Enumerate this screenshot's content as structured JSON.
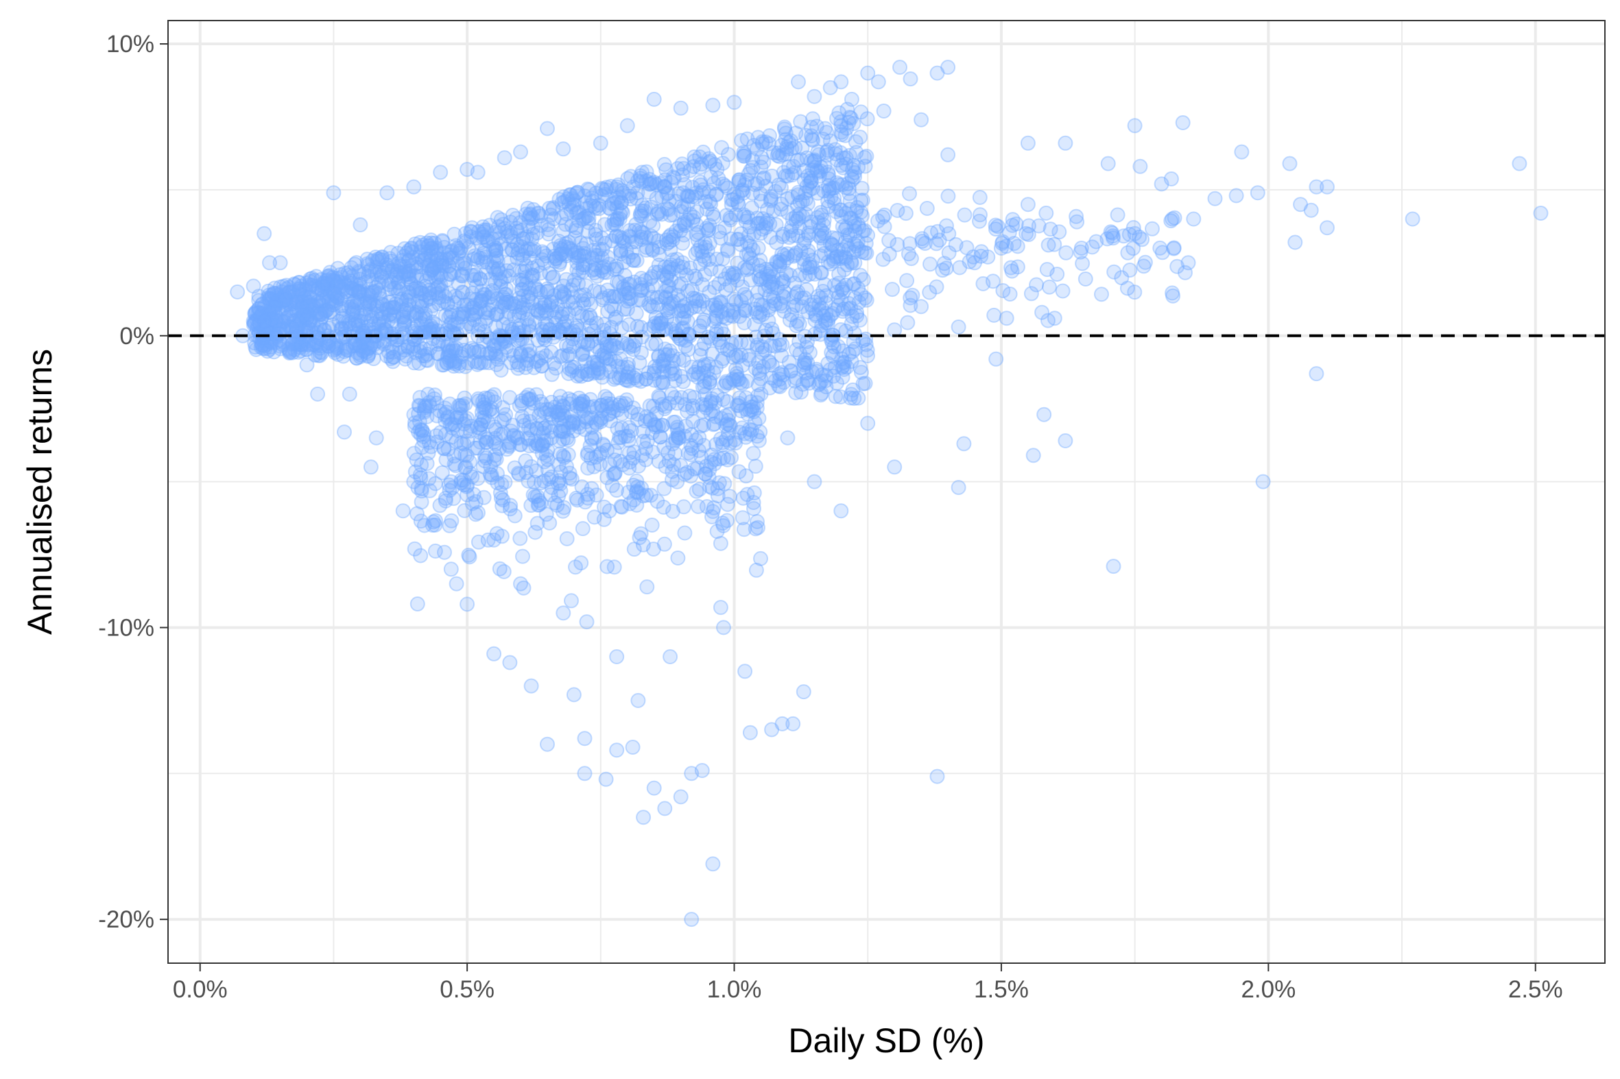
{
  "chart_data": {
    "type": "scatter",
    "title": "",
    "xlabel": "Daily SD (%)",
    "ylabel": "Annualised returns",
    "xlim": [
      -0.06,
      2.63
    ],
    "ylim": [
      -21.5,
      10.8
    ],
    "x_ticks": [
      {
        "value": 0.0,
        "label": "0.0%"
      },
      {
        "value": 0.5,
        "label": "0.5%"
      },
      {
        "value": 1.0,
        "label": "1.0%"
      },
      {
        "value": 1.5,
        "label": "1.5%"
      },
      {
        "value": 2.0,
        "label": "2.0%"
      },
      {
        "value": 2.5,
        "label": "2.5%"
      }
    ],
    "y_ticks": [
      {
        "value": 10,
        "label": "10%"
      },
      {
        "value": 0,
        "label": "0%"
      },
      {
        "value": -10,
        "label": "-10%"
      },
      {
        "value": -20,
        "label": "-20%"
      }
    ],
    "minor_grid_x": [
      0.25,
      0.75,
      1.25,
      1.75,
      2.25
    ],
    "minor_grid_y": [
      5,
      -5,
      -15
    ],
    "grid": true,
    "reference_line": {
      "axis": "y",
      "value": 0,
      "style": "dashed",
      "color": "#000000"
    },
    "point_color": "#6ea8fe",
    "point_alpha": 0.25,
    "series": [
      {
        "values": [
          [
            0.07,
            1.5
          ],
          [
            0.08,
            0.0
          ],
          [
            0.1,
            1.7
          ],
          [
            0.12,
            3.5
          ],
          [
            0.15,
            2.5
          ],
          [
            0.18,
            0.3
          ],
          [
            0.2,
            1.0
          ],
          [
            0.22,
            -2.0
          ],
          [
            0.25,
            4.9
          ],
          [
            0.27,
            -3.3
          ],
          [
            0.3,
            3.8
          ],
          [
            0.32,
            -4.5
          ],
          [
            0.35,
            4.9
          ],
          [
            0.38,
            -6.0
          ],
          [
            0.4,
            5.1
          ],
          [
            0.42,
            -6.5
          ],
          [
            0.45,
            5.6
          ],
          [
            0.47,
            -8.0
          ],
          [
            0.5,
            5.7
          ],
          [
            0.5,
            -9.2
          ],
          [
            0.52,
            5.6
          ],
          [
            0.55,
            -10.9
          ],
          [
            0.57,
            6.1
          ],
          [
            0.58,
            -11.2
          ],
          [
            0.6,
            6.3
          ],
          [
            0.62,
            -12.0
          ],
          [
            0.65,
            7.1
          ],
          [
            0.65,
            -14.0
          ],
          [
            0.68,
            6.4
          ],
          [
            0.7,
            -12.3
          ],
          [
            0.72,
            -15.0
          ],
          [
            0.72,
            -13.8
          ],
          [
            0.75,
            6.6
          ],
          [
            0.76,
            -15.2
          ],
          [
            0.78,
            -14.2
          ],
          [
            0.8,
            7.2
          ],
          [
            0.81,
            -14.1
          ],
          [
            0.83,
            -16.5
          ],
          [
            0.85,
            -15.5
          ],
          [
            0.85,
            8.1
          ],
          [
            0.87,
            -16.2
          ],
          [
            0.9,
            -15.8
          ],
          [
            0.9,
            7.8
          ],
          [
            0.92,
            -20.0
          ],
          [
            0.92,
            -15.0
          ],
          [
            0.94,
            -14.9
          ],
          [
            0.96,
            -18.1
          ],
          [
            0.96,
            7.9
          ],
          [
            1.0,
            8.0
          ],
          [
            1.03,
            -13.6
          ],
          [
            1.07,
            -13.5
          ],
          [
            1.09,
            -13.3
          ],
          [
            1.11,
            -13.3
          ],
          [
            1.12,
            8.7
          ],
          [
            1.13,
            -12.2
          ],
          [
            1.15,
            8.2
          ],
          [
            1.18,
            8.5
          ],
          [
            1.2,
            8.7
          ],
          [
            1.22,
            8.1
          ],
          [
            1.25,
            9.0
          ],
          [
            1.27,
            8.7
          ],
          [
            1.28,
            7.7
          ],
          [
            1.31,
            9.2
          ],
          [
            1.33,
            8.8
          ],
          [
            1.35,
            7.4
          ],
          [
            1.38,
            9.0
          ],
          [
            1.4,
            9.2
          ],
          [
            1.4,
            6.2
          ],
          [
            1.42,
            0.3
          ],
          [
            1.43,
            -3.7
          ],
          [
            1.42,
            -5.2
          ],
          [
            1.49,
            -0.8
          ],
          [
            1.5,
            3.0
          ],
          [
            1.51,
            0.6
          ],
          [
            1.55,
            6.6
          ],
          [
            1.58,
            -2.7
          ],
          [
            1.56,
            -4.1
          ],
          [
            1.6,
            0.6
          ],
          [
            1.62,
            -3.6
          ],
          [
            1.62,
            6.6
          ],
          [
            1.7,
            5.9
          ],
          [
            1.71,
            -7.9
          ],
          [
            1.75,
            7.2
          ],
          [
            1.76,
            5.8
          ],
          [
            1.8,
            5.2
          ],
          [
            1.82,
            4.0
          ],
          [
            1.84,
            7.3
          ],
          [
            1.86,
            4.0
          ],
          [
            1.9,
            4.7
          ],
          [
            1.94,
            4.8
          ],
          [
            1.95,
            6.3
          ],
          [
            1.98,
            4.9
          ],
          [
            1.99,
            -5.0
          ],
          [
            2.04,
            5.9
          ],
          [
            2.05,
            3.2
          ],
          [
            2.06,
            4.5
          ],
          [
            2.08,
            4.3
          ],
          [
            2.09,
            5.1
          ],
          [
            2.09,
            -1.3
          ],
          [
            2.11,
            5.1
          ],
          [
            2.11,
            3.7
          ],
          [
            2.27,
            4.0
          ],
          [
            2.47,
            5.9
          ],
          [
            2.51,
            4.2
          ],
          [
            0.95,
            -1.2
          ],
          [
            1.05,
            -2.0
          ],
          [
            1.1,
            -3.5
          ],
          [
            1.15,
            -5.0
          ],
          [
            1.2,
            -6.0
          ],
          [
            1.25,
            -3.0
          ],
          [
            1.3,
            0.2
          ],
          [
            1.35,
            1.0
          ],
          [
            1.45,
            2.5
          ],
          [
            1.55,
            4.5
          ],
          [
            1.65,
            3.0
          ],
          [
            1.75,
            3.5
          ],
          [
            1.85,
            2.5
          ],
          [
            1.3,
            -4.5
          ],
          [
            1.38,
            -15.1
          ],
          [
            1.02,
            -11.5
          ],
          [
            0.98,
            -10.0
          ],
          [
            0.88,
            -11.0
          ],
          [
            0.82,
            -12.5
          ],
          [
            0.78,
            -11.0
          ],
          [
            0.68,
            -9.5
          ],
          [
            0.6,
            -8.5
          ],
          [
            0.55,
            -7.0
          ],
          [
            0.48,
            -8.5
          ],
          [
            0.4,
            -5.0
          ],
          [
            0.33,
            -3.5
          ],
          [
            0.28,
            -2.0
          ],
          [
            0.2,
            -1.0
          ],
          [
            0.15,
            0.2
          ],
          [
            0.12,
            1.0
          ],
          [
            0.1,
            0.5
          ],
          [
            0.13,
            2.5
          ]
        ]
      }
    ]
  }
}
